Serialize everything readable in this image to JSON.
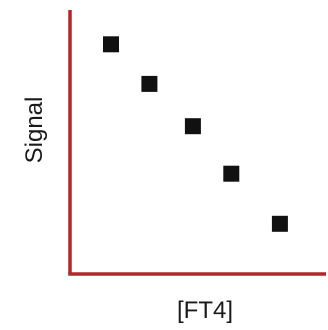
{
  "chart_data": {
    "type": "scatter",
    "xlabel": "[FT4]",
    "ylabel": "Signal",
    "xlim": [
      0,
      10
    ],
    "ylim": [
      0,
      10
    ],
    "grid": false,
    "legend": "none",
    "ticks": false,
    "colors": {
      "axis": "#b3262a",
      "marker": "#111111",
      "text": "#1a1a1a"
    },
    "series": [
      {
        "x": [
          1.6,
          3.1,
          4.8,
          6.3,
          8.2
        ],
        "y": [
          8.7,
          7.2,
          5.6,
          3.8,
          1.9
        ]
      }
    ]
  }
}
